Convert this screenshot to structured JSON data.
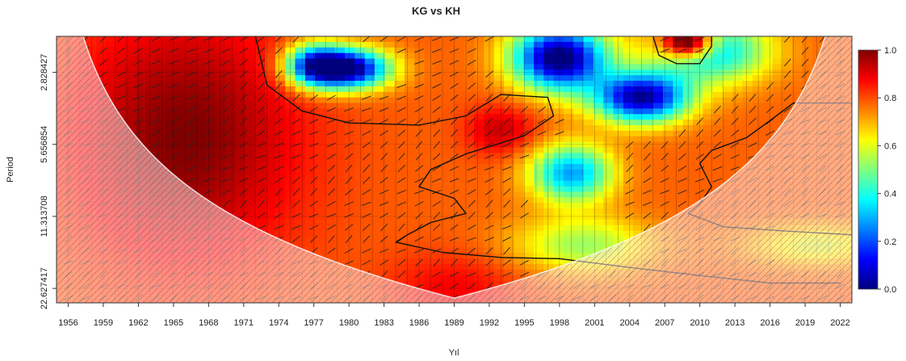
{
  "chart_data": {
    "type": "heatmap",
    "title": "KG vs KH",
    "xlabel": "Yıl",
    "ylabel": "Period",
    "x_ticks": [
      "1956",
      "1959",
      "1962",
      "1965",
      "1968",
      "1971",
      "1974",
      "1977",
      "1980",
      "1983",
      "1986",
      "1989",
      "1992",
      "1995",
      "1998",
      "2001",
      "2004",
      "2007",
      "2010",
      "2013",
      "2016",
      "2019",
      "2022"
    ],
    "y_ticks": [
      "2.828427",
      "5.656854",
      "11.313708",
      "22.627417"
    ],
    "xlim": [
      1955,
      2023
    ],
    "ylim_period": [
      2,
      26
    ],
    "y_scale": "log2",
    "colorbar": {
      "ticks": [
        "0.0",
        "0.2",
        "0.4",
        "0.6",
        "0.8",
        "1.0"
      ],
      "range": [
        0,
        1
      ],
      "palette": [
        "#00007f",
        "#0000ff",
        "#007fff",
        "#00ffff",
        "#7fff7f",
        "#ffff00",
        "#ff7f00",
        "#ff0000",
        "#7f0000"
      ]
    },
    "cone_of_influence": true,
    "phase_arrows": true,
    "significance_contours": true,
    "regions": [
      {
        "name": "early-high-coherence",
        "years": [
          1958,
          1975
        ],
        "periods": [
          2,
          16
        ],
        "level": 0.95
      },
      {
        "name": "low-coherence-1978-1983",
        "years": [
          1977,
          1983
        ],
        "periods": [
          2.4,
          3.3
        ],
        "level": 0.05
      },
      {
        "name": "low-coherence-1994-2010",
        "years": [
          1994,
          2010
        ],
        "periods": [
          2,
          4.5
        ],
        "level": 0.1
      },
      {
        "name": "mid-band-1998-2002",
        "years": [
          1997,
          2002
        ],
        "periods": [
          6,
          8
        ],
        "level": 0.3
      },
      {
        "name": "high-coherence-2007-2010",
        "years": [
          2006,
          2010
        ],
        "periods": [
          2,
          2.6
        ],
        "level": 0.95
      },
      {
        "name": "long-period-band",
        "years": [
          1984,
          1998
        ],
        "periods": [
          14,
          26
        ],
        "level": 0.85
      }
    ]
  }
}
